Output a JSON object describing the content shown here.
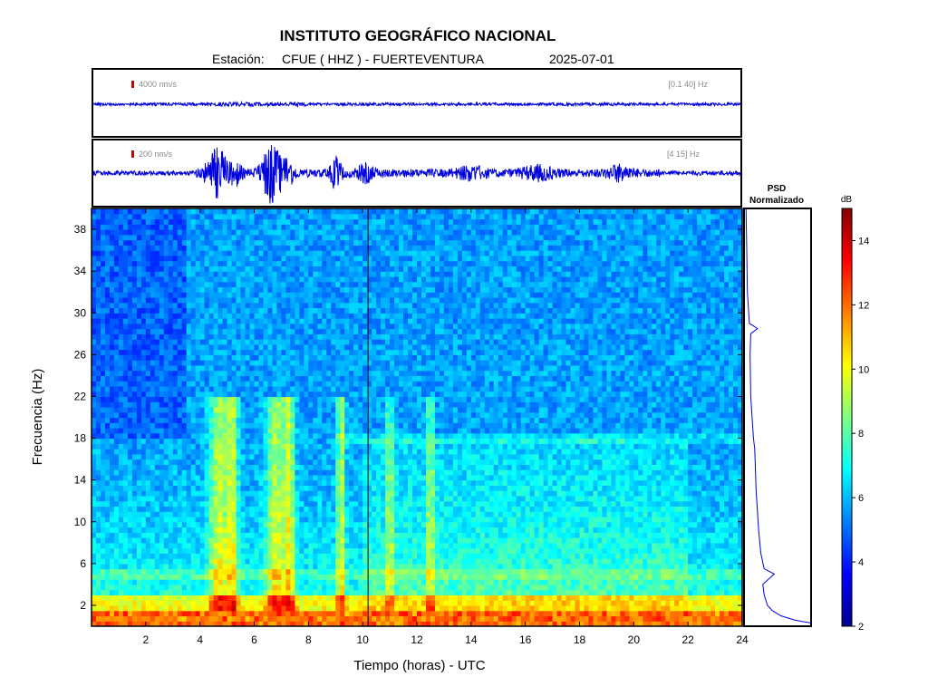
{
  "header": {
    "title": "INSTITUTO GEOGRÁFICO NACIONAL",
    "station_prefix": "Estación:",
    "station": "CFUE ( HHZ ) - FUERTEVENTURA",
    "date": "2025-07-01"
  },
  "traces": [
    {
      "scale_label": "4000 nm/s",
      "band_label": "[0.1 40] Hz"
    },
    {
      "scale_label": "200 nm/s",
      "band_label": "[4 15] Hz"
    }
  ],
  "psd": {
    "title_line1": "PSD",
    "title_line2": "Normalizado"
  },
  "colorbar": {
    "label": "dB",
    "ticks": [
      2,
      4,
      6,
      8,
      10,
      12,
      14
    ],
    "range": [
      2,
      15
    ]
  },
  "colors": {
    "trace": "#0000dd",
    "event_marker": "#cc0000",
    "cursor": "#000000",
    "axis_text": "#000000",
    "label_gray": "#888888"
  },
  "chart_data": {
    "type": "heatmap",
    "xlabel": "Tiempo (horas) - UTC",
    "ylabel": "Frecuencia  (Hz)",
    "xlim": [
      0,
      24
    ],
    "ylim": [
      0,
      40
    ],
    "x_ticks": [
      2,
      4,
      6,
      8,
      10,
      12,
      14,
      16,
      18,
      20,
      22,
      24
    ],
    "y_ticks": [
      2,
      6,
      10,
      14,
      18,
      22,
      26,
      30,
      34,
      38
    ],
    "colormap": "jet",
    "z_unit": "dB",
    "cursor_time_hours": 10.2,
    "psd_curve": [
      [
        0.3,
        1.0
      ],
      [
        0.6,
        0.75
      ],
      [
        1.0,
        0.55
      ],
      [
        1.5,
        0.42
      ],
      [
        2.0,
        0.35
      ],
      [
        3.0,
        0.3
      ],
      [
        4.0,
        0.28
      ],
      [
        5.0,
        0.45
      ],
      [
        5.5,
        0.3
      ],
      [
        7.0,
        0.25
      ],
      [
        9.0,
        0.22
      ],
      [
        11.0,
        0.2
      ],
      [
        13.0,
        0.18
      ],
      [
        15.0,
        0.17
      ],
      [
        17.0,
        0.16
      ],
      [
        18.0,
        0.14
      ],
      [
        20.0,
        0.12
      ],
      [
        22.0,
        0.1
      ],
      [
        26.0,
        0.09
      ],
      [
        28.0,
        0.1
      ],
      [
        28.5,
        0.2
      ],
      [
        29.0,
        0.08
      ],
      [
        32.0,
        0.05
      ],
      [
        36.0,
        0.04
      ],
      [
        40.0,
        0.03
      ]
    ]
  }
}
